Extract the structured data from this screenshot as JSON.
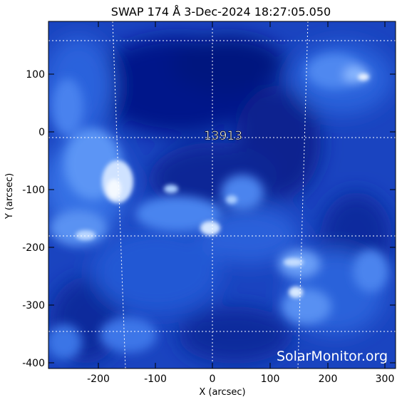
{
  "title": "SWAP  174 Å  3-Dec-2024 18:27:05.050",
  "axes": {
    "xlabel": "X (arcsec)",
    "ylabel": "Y (arcsec)",
    "x_ticks": [
      "-200",
      "-100",
      "0",
      "100",
      "200",
      "300"
    ],
    "y_ticks": [
      "100",
      "0",
      "-100",
      "-200",
      "-300",
      "-400"
    ],
    "x_range": [
      -285,
      320
    ],
    "y_range": [
      -410,
      195
    ]
  },
  "region_label": "13913",
  "watermark": "SolarMonitor.org",
  "colors": {
    "background": "#ffffff",
    "frame": "#000000",
    "deep_blue": "#04177a",
    "mid_blue": "#1f55d8",
    "bright_blue": "#7fb3ff",
    "white_core": "#eaf3ff",
    "grid": "#ffffff"
  }
}
